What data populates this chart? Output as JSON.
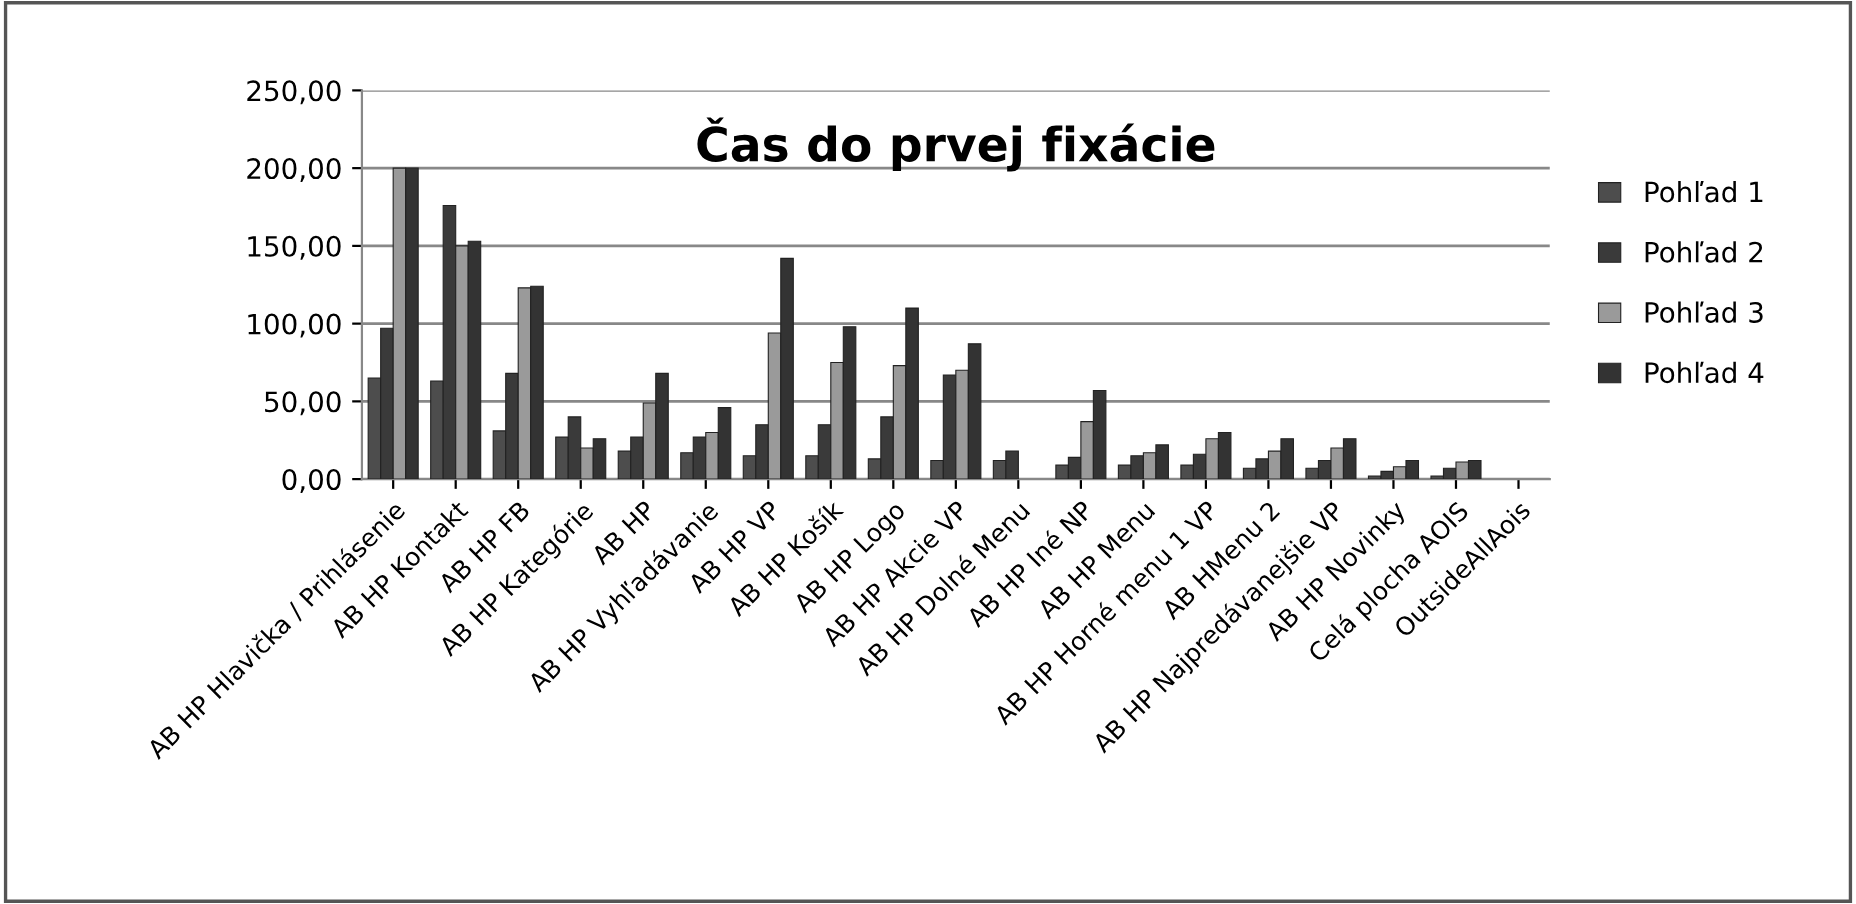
{
  "chart_data": {
    "type": "bar",
    "title": "Čas do prvej fixácie",
    "categories": [
      "AB HP Hlavička / Prihlásenie",
      "AB HP Kontakt",
      "AB HP FB",
      "AB HP Kategórie",
      "AB HP",
      "AB HP Vyhľadávanie",
      "AB HP VP",
      "AB HP Košík",
      "AB HP Logo",
      "AB HP Akcie VP",
      "AB HP Dolné Menu",
      "AB HP Iné NP",
      "AB HP Menu",
      "AB HP Horné menu 1 VP",
      "AB HMenu 2",
      "AB HP Najpredávanejšie VP",
      "AB HP Novinky",
      "Celá plocha AOIS",
      "OutsideAllAois"
    ],
    "series": [
      {
        "name": "Pohľad 1",
        "color": "#4d4d4d",
        "values": [
          65,
          63,
          31,
          27,
          18,
          17,
          15,
          15,
          13,
          12,
          12,
          9,
          9,
          9,
          7,
          7,
          2,
          2,
          null
        ]
      },
      {
        "name": "Pohľad 2",
        "color": "#3a3a3a",
        "values": [
          97,
          176,
          68,
          40,
          27,
          27,
          35,
          35,
          40,
          67,
          18,
          14,
          15,
          16,
          13,
          12,
          5,
          7,
          null
        ]
      },
      {
        "name": "Pohľad 3",
        "color": "#9a9a9a",
        "values": [
          200,
          150,
          123,
          20,
          49,
          30,
          94,
          75,
          73,
          70,
          null,
          37,
          17,
          26,
          18,
          20,
          8,
          11,
          null
        ]
      },
      {
        "name": "Pohľad 4",
        "color": "#333333",
        "values": [
          200,
          153,
          124,
          26,
          68,
          46,
          142,
          98,
          110,
          87,
          null,
          57,
          22,
          30,
          26,
          26,
          12,
          12,
          null
        ]
      }
    ],
    "ylim": [
      0,
      250
    ],
    "yticks": [
      {
        "value": 0,
        "label": "0,00"
      },
      {
        "value": 50,
        "label": "50,00"
      },
      {
        "value": 100,
        "label": "100,00"
      },
      {
        "value": 150,
        "label": "150,00"
      },
      {
        "value": 200,
        "label": "200,00"
      },
      {
        "value": 250,
        "label": "250,00"
      }
    ],
    "grid": "y",
    "legend": "right"
  }
}
